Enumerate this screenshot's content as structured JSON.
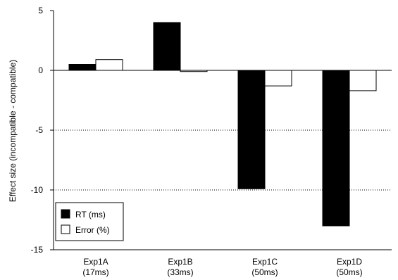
{
  "chart_data": {
    "type": "bar",
    "ylabel": "Effect size (incompatible - compatible)",
    "ylim": [
      -15,
      5
    ],
    "yticks": [
      5,
      0,
      -5,
      -10,
      -15
    ],
    "gridlines": [
      -5,
      -10
    ],
    "legend_position": "bottom-left",
    "categories": [
      {
        "line1": "Exp1A",
        "line2": "(17ms)"
      },
      {
        "line1": "Exp1B",
        "line2": "(33ms)"
      },
      {
        "line1": "Exp1C",
        "line2": "(50ms)"
      },
      {
        "line1": "Exp1D",
        "line2": "(50ms)"
      }
    ],
    "series": [
      {
        "name": "RT (ms)",
        "color": "#000000",
        "values": [
          0.5,
          4.0,
          -9.9,
          -13.0
        ]
      },
      {
        "name": "Error (%)",
        "color": "#ffffff",
        "values": [
          0.9,
          -0.1,
          -1.3,
          -1.7
        ]
      }
    ]
  }
}
